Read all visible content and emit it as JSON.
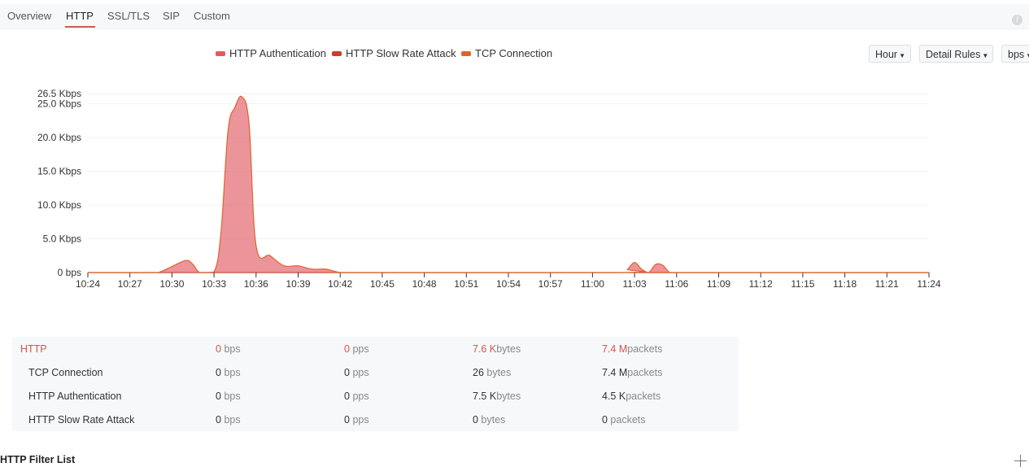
{
  "tabs": [
    {
      "label": "Overview"
    },
    {
      "label": "HTTP",
      "active": true
    },
    {
      "label": "SSL/TLS"
    },
    {
      "label": "SIP"
    },
    {
      "label": "Custom"
    }
  ],
  "info_icon": "info-icon",
  "legend": [
    {
      "label": "HTTP Authentication",
      "color": "#e05a64"
    },
    {
      "label": "HTTP Slow Rate Attack",
      "color": "#c9412e"
    },
    {
      "label": "TCP Connection",
      "color": "#e0632e"
    }
  ],
  "controls": {
    "interval": "Hour",
    "rules": "Detail Rules",
    "unit": "bps"
  },
  "chart_data": {
    "type": "area",
    "x_ticks": [
      "10:24",
      "10:27",
      "10:30",
      "10:33",
      "10:36",
      "10:39",
      "10:42",
      "10:45",
      "10:48",
      "10:51",
      "10:54",
      "10:57",
      "11:00",
      "11:03",
      "11:06",
      "11:09",
      "11:12",
      "11:15",
      "11:18",
      "11:21",
      "11:24"
    ],
    "y_ticks": [
      {
        "value": 0,
        "label": "0 bps"
      },
      {
        "value": 5.0,
        "label": "5.0 Kbps"
      },
      {
        "value": 10.0,
        "label": "10.0 Kbps"
      },
      {
        "value": 15.0,
        "label": "15.0 Kbps"
      },
      {
        "value": 20.0,
        "label": "20.0 Kbps"
      },
      {
        "value": 25.0,
        "label": "25.0 Kbps"
      },
      {
        "value": 26.5,
        "label": "26.5 Kbps"
      }
    ],
    "ylim": [
      0,
      26.5
    ],
    "y_unit": "Kbps",
    "grid": true,
    "legend_position": "top",
    "series": [
      {
        "name": "HTTP Authentication",
        "color": "#e05a64",
        "x": [
          "10:24",
          "10:28",
          "10:29",
          "10:30",
          "10:31",
          "10:31.5",
          "10:32",
          "10:33",
          "10:33.5",
          "10:34",
          "10:34.5",
          "10:35",
          "10:35.5",
          "10:36",
          "10:37",
          "10:38",
          "10:39",
          "10:40",
          "10:41",
          "10:42",
          "10:43",
          "11:02",
          "11:02.5",
          "11:03",
          "11:03.5",
          "11:04",
          "11:04.5",
          "11:05",
          "11:05.5",
          "11:06",
          "11:24"
        ],
        "y": [
          0,
          0,
          0,
          0.9,
          1.8,
          1.2,
          0,
          0.1,
          6,
          21,
          24.5,
          26,
          22,
          4,
          2.5,
          1,
          1,
          0.5,
          0.5,
          0,
          0,
          0,
          0.5,
          1.5,
          0.5,
          0,
          1.2,
          1.1,
          0,
          0,
          0
        ]
      }
    ]
  },
  "stats": [
    {
      "name": "HTTP",
      "bps": "0",
      "bps_unit": "bps",
      "pps": "0",
      "pps_unit": "pps",
      "bytes": "7.6 K",
      "bytes_unit": "bytes",
      "packets": "7.4 M",
      "packets_unit": "packets",
      "highlight": true
    },
    {
      "name": "TCP Connection",
      "bps": "0",
      "bps_unit": "bps",
      "pps": "0",
      "pps_unit": "pps",
      "bytes": "26",
      "bytes_unit": " bytes",
      "packets": "7.4 M",
      "packets_unit": "packets"
    },
    {
      "name": "HTTP Authentication",
      "bps": "0",
      "bps_unit": "bps",
      "pps": "0",
      "pps_unit": "pps",
      "bytes": "7.5 K",
      "bytes_unit": "bytes",
      "packets": "4.5 K",
      "packets_unit": "packets"
    },
    {
      "name": "HTTP Slow Rate Attack",
      "bps": "0",
      "bps_unit": "bps",
      "pps": "0",
      "pps_unit": "pps",
      "bytes": "0",
      "bytes_unit": " bytes",
      "packets": "0",
      "packets_unit": " packets"
    }
  ],
  "filter_list": {
    "title": "HTTP Filter List",
    "add_icon": "plus-icon"
  }
}
